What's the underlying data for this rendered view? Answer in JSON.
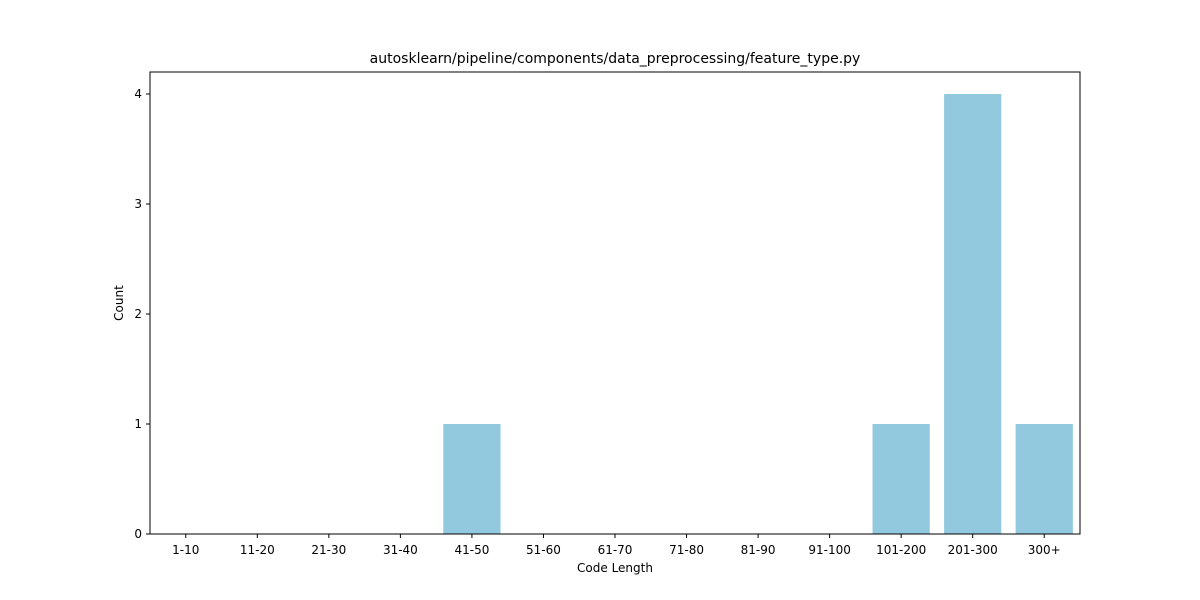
{
  "chart_data": {
    "type": "bar",
    "title": "autosklearn/pipeline/components/data_preprocessing/feature_type.py",
    "xlabel": "Code Length",
    "ylabel": "Count",
    "categories": [
      "1-10",
      "11-20",
      "21-30",
      "31-40",
      "41-50",
      "51-60",
      "61-70",
      "71-80",
      "81-90",
      "91-100",
      "101-200",
      "201-300",
      "300+"
    ],
    "values": [
      0,
      0,
      0,
      0,
      1,
      0,
      0,
      0,
      0,
      0,
      1,
      4,
      1
    ],
    "ylim": [
      0,
      4.2
    ],
    "yticks": [
      0,
      1,
      2,
      3,
      4
    ],
    "bar_color": "#92c9df",
    "grid": false,
    "legend": false
  }
}
